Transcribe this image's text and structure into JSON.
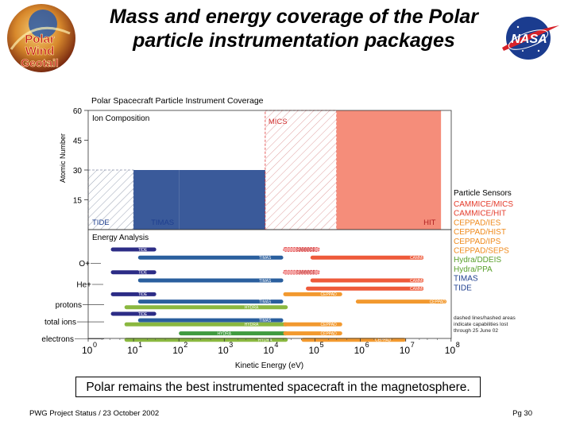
{
  "slide": {
    "title": "Mass and energy coverage of the Polar particle instrumentation packages",
    "caption": "Polar remains the best instrumented spacecraft in the magnetosphere.",
    "footer_left": "PWG Project Status / 23 October 2002",
    "footer_right": "Pg 30",
    "logo_left_text": [
      "Polar",
      "Wind",
      "Geotail"
    ],
    "logo_right_text": "NASA"
  },
  "chart_data": {
    "type": "coverage",
    "title": "Polar Spacecraft Particle Instrument Coverage",
    "top_panel": {
      "subtitle": "Ion Composition",
      "ylabel": "Atomic Number",
      "yticks": [
        60,
        45,
        30,
        15
      ],
      "ylim": [
        0,
        60
      ],
      "regions": [
        {
          "name": "TIDE",
          "e_min": 1,
          "e_max": 10,
          "z_max": 30,
          "style": "hatch"
        },
        {
          "name": "TIMAS",
          "e_min": 10,
          "e_max": 100,
          "z_max": 30,
          "style": "solid-blue"
        },
        {
          "name": "TIMAS",
          "e_min": 100,
          "e_max": 8000,
          "z_max": 30,
          "style": "solid-blue"
        },
        {
          "name": "MICS",
          "e_min": 8000,
          "e_max": 300000,
          "z_max": 60,
          "style": "hatch-red"
        },
        {
          "name": "MICS",
          "e_min": 300000,
          "e_max": 2000000,
          "z_max": 60,
          "style": "solid-salmon"
        },
        {
          "name": "HIT",
          "e_min": 300000,
          "e_max": 60000000,
          "z_max": 60,
          "style": "solid-salmon"
        }
      ]
    },
    "bottom_panel": {
      "subtitle": "Energy Analysis",
      "xlabel": "Kinetic Energy (eV)",
      "xtick_labels": [
        {
          "base": "10",
          "exp": "0"
        },
        {
          "base": "10",
          "exp": "1"
        },
        {
          "base": "10",
          "exp": "2"
        },
        {
          "base": "10",
          "exp": "3"
        },
        {
          "base": "10",
          "exp": "4"
        },
        {
          "base": "10",
          "exp": "5"
        },
        {
          "base": "10",
          "exp": "6"
        },
        {
          "base": "10",
          "exp": "7"
        },
        {
          "base": "10",
          "exp": "8"
        }
      ],
      "species": [
        "O+",
        "He+",
        "protons",
        "total ions",
        "electrons"
      ],
      "bars": [
        {
          "label": "TIDE",
          "lo": 0.5,
          "hi": 1.5,
          "row": 0.0,
          "color": "#2c2c86",
          "label_at": 1.2
        },
        {
          "label": "TIMAS",
          "lo": 1.1,
          "hi": 4.3,
          "row": 0.5,
          "color": "#2a5f9e",
          "label_at": 3.9
        },
        {
          "label": "CAMMICE",
          "lo": 4.3,
          "hi": 5.1,
          "row": 0.0,
          "color": "#f4a3a3",
          "label_at": 4.8,
          "dashed": true
        },
        {
          "label": "CAMMICE",
          "lo": 4.9,
          "hi": 7.4,
          "row": 0.5,
          "color": "#ee5a3a",
          "label_at": 7.3
        },
        {
          "label": "TIDE",
          "lo": 0.5,
          "hi": 1.5,
          "row": 1.4,
          "color": "#2c2c86",
          "label_at": 1.2
        },
        {
          "label": "TIMAS",
          "lo": 1.1,
          "hi": 4.3,
          "row": 1.9,
          "color": "#2a5f9e",
          "label_at": 3.9
        },
        {
          "label": "CAMMICE",
          "lo": 4.3,
          "hi": 5.1,
          "row": 1.4,
          "color": "#f4a3a3",
          "label_at": 4.8,
          "dashed": true
        },
        {
          "label": "CAMMICE",
          "lo": 4.9,
          "hi": 7.4,
          "row": 1.9,
          "color": "#ee5a3a",
          "label_at": 7.3
        },
        {
          "label": "TIDE",
          "lo": 0.5,
          "hi": 1.5,
          "row": 2.75,
          "color": "#2c2c86",
          "label_at": 1.2
        },
        {
          "label": "TIMAS",
          "lo": 1.1,
          "hi": 4.3,
          "row": 3.2,
          "color": "#2a5f9e",
          "label_at": 3.9
        },
        {
          "label": "HYDRA",
          "lo": 0.8,
          "hi": 4.4,
          "row": 3.55,
          "color": "#8ab840",
          "label_at": 3.6
        },
        {
          "label": "CEPPAD",
          "lo": 4.3,
          "hi": 5.6,
          "row": 2.75,
          "color": "#f2992f",
          "label_at": 5.3
        },
        {
          "label": "CAMMICE",
          "lo": 4.8,
          "hi": 7.4,
          "row": 2.4,
          "color": "#ee5a3a",
          "label_at": 7.3
        },
        {
          "label": "CEPPAD",
          "lo": 5.9,
          "hi": 7.9,
          "row": 3.2,
          "color": "#f2992f",
          "label_at": 7.7
        },
        {
          "label": "TIDE",
          "lo": 0.5,
          "hi": 1.5,
          "row": 3.95,
          "color": "#2c2c86",
          "label_at": 1.2
        },
        {
          "label": "TIMAS",
          "lo": 1.1,
          "hi": 4.3,
          "row": 4.35,
          "color": "#2a5f9e",
          "label_at": 3.9
        },
        {
          "label": "HYDRA",
          "lo": 0.8,
          "hi": 4.4,
          "row": 4.6,
          "color": "#8ab840",
          "label_at": 3.6
        },
        {
          "label": "CEPPAD",
          "lo": 4.3,
          "hi": 5.6,
          "row": 4.6,
          "color": "#f2992f",
          "label_at": 5.3
        },
        {
          "label": "HYDRA",
          "lo": 2.0,
          "hi": 4.4,
          "row": 5.15,
          "color": "#3f9b3f",
          "label_at": 3.0
        },
        {
          "label": "HYDRA",
          "lo": 0.8,
          "hi": 4.4,
          "row": 5.55,
          "color": "#8ab840",
          "label_at": 3.9
        },
        {
          "label": "CEPPAD",
          "lo": 4.3,
          "hi": 5.6,
          "row": 5.15,
          "color": "#f2992f",
          "label_at": 5.3
        },
        {
          "label": "CEPPAD",
          "lo": 4.7,
          "hi": 7.0,
          "row": 5.55,
          "color": "#f2992f",
          "label_at": 6.5
        }
      ]
    },
    "legend": {
      "title": "Particle Sensors",
      "entries": [
        {
          "label": "CAMMICE/MICS",
          "color": "#e43a2a"
        },
        {
          "label": "CAMMICE/HIT",
          "color": "#e43a2a"
        },
        {
          "label": "CEPPAD/IES",
          "color": "#ef8a1c"
        },
        {
          "label": "CEPPAD/HIST",
          "color": "#ef8a1c"
        },
        {
          "label": "CEPPAD/IPS",
          "color": "#ef8a1c"
        },
        {
          "label": "CEPPAD/SEPS",
          "color": "#ef8a1c"
        },
        {
          "label": "Hydra/DDEIS",
          "color": "#5aa02c"
        },
        {
          "label": "Hydra/PPA",
          "color": "#5aa02c"
        },
        {
          "label": "TIMAS",
          "color": "#1f3f8f"
        },
        {
          "label": "TIDE",
          "color": "#1f3f8f"
        }
      ],
      "note": [
        "dashed lines/hashed areas",
        "indicate capabilities lost",
        "through 25 June 02"
      ]
    }
  }
}
